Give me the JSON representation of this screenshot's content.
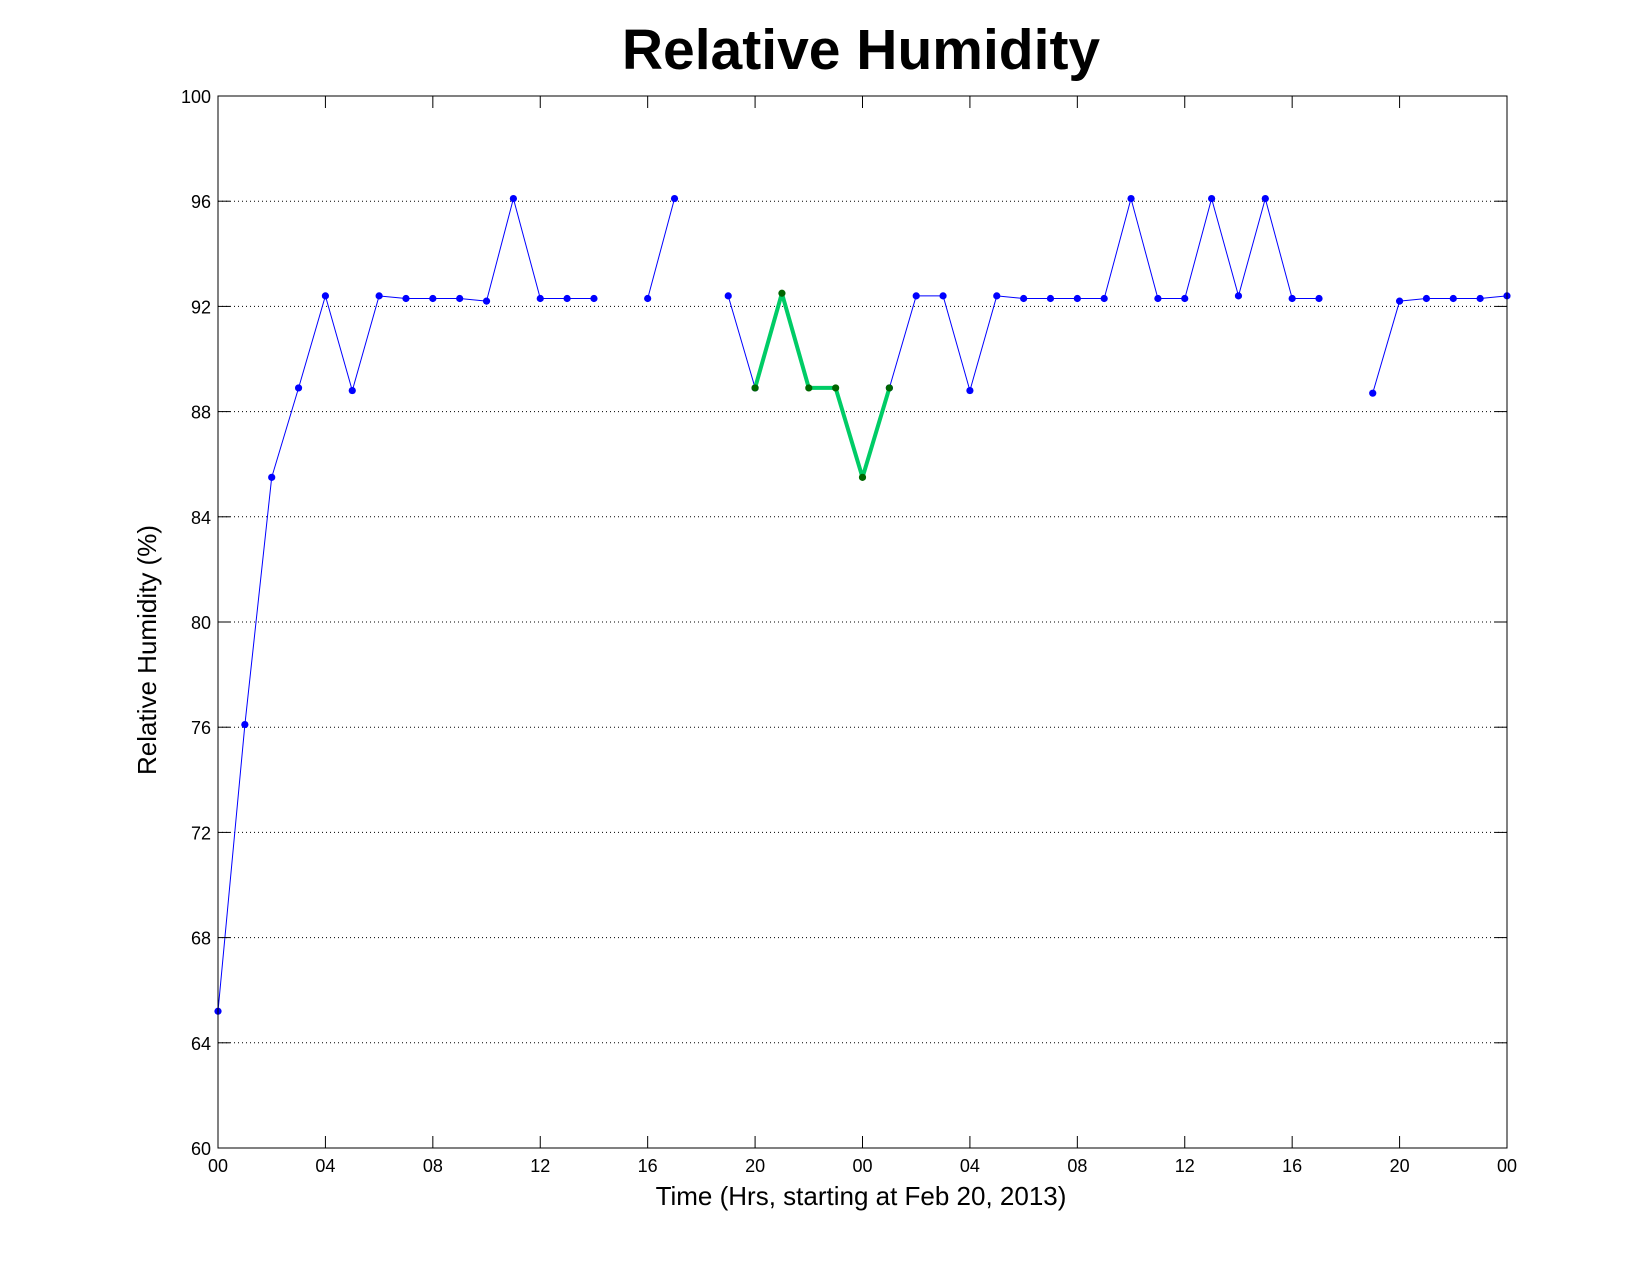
{
  "chart_data": {
    "type": "line",
    "title": "Relative Humidity",
    "xlabel": "Time (Hrs, starting at Feb 20, 2013)",
    "ylabel": "Relative Humidity (%)",
    "ylim": [
      60,
      100
    ],
    "xlim": [
      0,
      48
    ],
    "grid": "horizontal-dotted",
    "xticks": [
      {
        "value": 0,
        "label": "00"
      },
      {
        "value": 4,
        "label": "04"
      },
      {
        "value": 8,
        "label": "08"
      },
      {
        "value": 12,
        "label": "12"
      },
      {
        "value": 16,
        "label": "16"
      },
      {
        "value": 20,
        "label": "20"
      },
      {
        "value": 24,
        "label": "00"
      },
      {
        "value": 28,
        "label": "04"
      },
      {
        "value": 32,
        "label": "08"
      },
      {
        "value": 36,
        "label": "12"
      },
      {
        "value": 40,
        "label": "16"
      },
      {
        "value": 44,
        "label": "20"
      },
      {
        "value": 48,
        "label": "00"
      }
    ],
    "yticks": [
      60,
      64,
      68,
      72,
      76,
      80,
      84,
      88,
      92,
      96,
      100
    ],
    "series": [
      {
        "color": "#0000ff",
        "marker_color": "#0000ff",
        "line_width": 1,
        "x": [
          0,
          1,
          2,
          3,
          4,
          5,
          6,
          7,
          8,
          9,
          10,
          11,
          12,
          13,
          14,
          15,
          16,
          17,
          18,
          19,
          20,
          21,
          22,
          23,
          24,
          25,
          26,
          27,
          28,
          29,
          30,
          31,
          32,
          33,
          34,
          35,
          36,
          37,
          38,
          39,
          40,
          41,
          42,
          43,
          44,
          45,
          46,
          47,
          48
        ],
        "y": [
          65.2,
          76.1,
          85.5,
          88.9,
          92.4,
          88.8,
          92.4,
          92.3,
          92.3,
          92.3,
          92.2,
          96.1,
          92.3,
          92.3,
          92.3,
          null,
          92.3,
          96.1,
          null,
          92.4,
          88.9,
          null,
          null,
          null,
          null,
          88.9,
          92.4,
          92.4,
          88.8,
          92.4,
          92.3,
          92.3,
          92.3,
          92.3,
          96.1,
          92.3,
          92.3,
          96.1,
          92.4,
          96.1,
          92.3,
          92.3,
          null,
          88.7,
          92.2,
          92.3,
          92.3,
          92.3,
          92.4
        ]
      },
      {
        "color": "#00cc66",
        "marker_color": "#006600",
        "line_width": 4,
        "x": [
          20,
          21,
          22,
          23,
          24,
          25
        ],
        "y": [
          88.9,
          92.5,
          88.9,
          88.9,
          85.5,
          88.9
        ]
      }
    ]
  }
}
